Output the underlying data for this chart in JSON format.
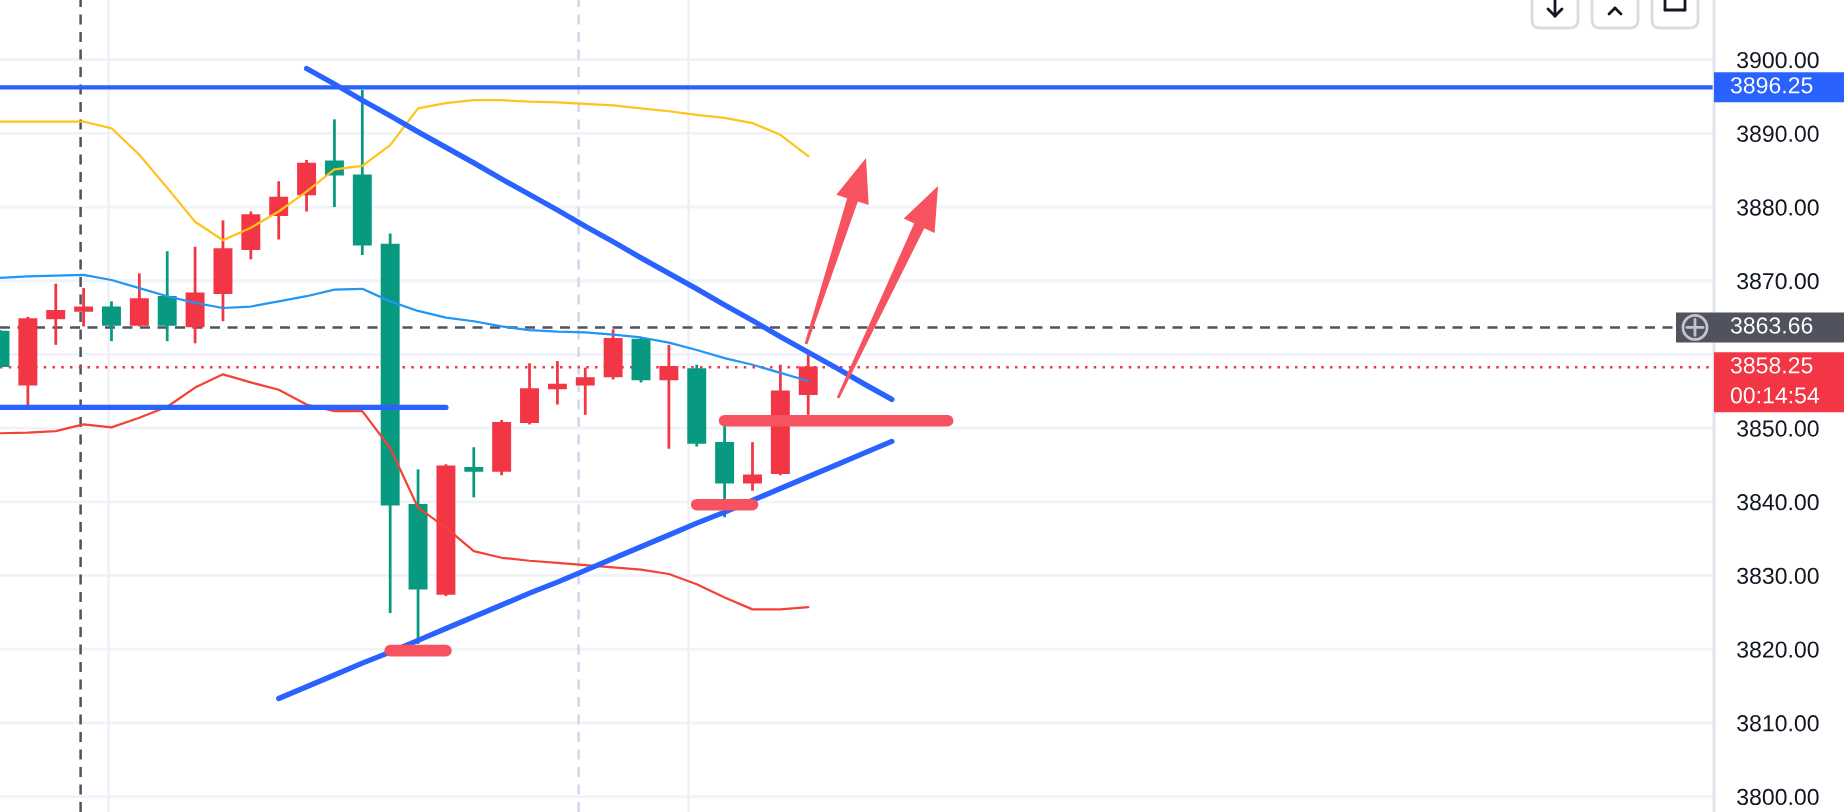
{
  "chart_data": {
    "type": "candlestick",
    "categories": [
      null,
      null,
      null,
      null,
      null,
      null,
      null,
      null,
      null,
      null,
      null,
      null,
      null,
      null,
      null,
      null,
      null,
      null,
      null,
      null,
      null,
      null,
      null,
      null,
      null,
      null,
      null,
      null,
      null,
      null,
      null,
      null,
      null,
      null,
      null,
      null,
      null,
      null,
      null,
      null,
      null,
      null,
      null,
      null,
      null,
      null,
      null,
      null,
      null,
      null,
      null,
      null,
      null,
      null,
      null,
      null,
      null,
      null,
      null,
      null,
      null,
      null
    ],
    "ohlc": [
      [
        3863.1,
        3863.3,
        3858.2,
        3858.4
      ],
      [
        3855.9,
        3865.1,
        3852.8,
        3864.8
      ],
      [
        3864.9,
        3869.6,
        3861.3,
        3865.9
      ],
      [
        3865.9,
        3869.0,
        3863.8,
        3866.4
      ],
      [
        3866.4,
        3867.2,
        3861.8,
        3864.0
      ],
      [
        3864.0,
        3871.0,
        3863.8,
        3867.5
      ],
      [
        3867.8,
        3874.0,
        3861.8,
        3864.0
      ],
      [
        3863.8,
        3874.6,
        3861.5,
        3868.3
      ],
      [
        3868.3,
        3878.2,
        3864.5,
        3874.3
      ],
      [
        3874.3,
        3879.4,
        3872.9,
        3878.9
      ],
      [
        3878.9,
        3883.5,
        3875.6,
        3881.3
      ],
      [
        3881.7,
        3886.4,
        3879.4,
        3885.9
      ],
      [
        3886.2,
        3891.9,
        3880.0,
        3884.4
      ],
      [
        3884.3,
        3895.9,
        3873.5,
        3874.9
      ],
      [
        3874.9,
        3876.4,
        3824.9,
        3839.6
      ],
      [
        3839.6,
        3844.4,
        3820.7,
        3828.2
      ],
      [
        3827.5,
        3845.1,
        3827.2,
        3844.8
      ],
      [
        3844.6,
        3847.4,
        3840.6,
        3844.2
      ],
      [
        3844.2,
        3851.1,
        3843.6,
        3850.7
      ],
      [
        3850.8,
        3858.8,
        3850.5,
        3855.3
      ],
      [
        3855.4,
        3859.1,
        3853.2,
        3855.9
      ],
      [
        3855.9,
        3858.2,
        3851.8,
        3856.8
      ],
      [
        3857.0,
        3863.4,
        3856.6,
        3862.1
      ],
      [
        3862.0,
        3862.3,
        3856.2,
        3856.6
      ],
      [
        3856.6,
        3861.3,
        3847.2,
        3858.3
      ],
      [
        3858.0,
        3858.6,
        3847.5,
        3848.0
      ],
      [
        3848.0,
        3850.5,
        3837.9,
        3842.6
      ],
      [
        3842.6,
        3848.1,
        3841.5,
        3843.6
      ],
      [
        3843.9,
        3858.6,
        3843.6,
        3855.0
      ],
      [
        3854.6,
        3860.4,
        3851.8,
        3858.25
      ],
      null,
      null,
      null,
      null,
      null,
      null,
      null,
      null,
      null,
      null,
      null,
      null,
      null,
      null,
      null,
      null,
      null,
      null,
      null,
      null,
      null,
      null,
      null,
      null,
      null,
      null,
      null,
      null,
      null,
      null,
      null,
      null
    ],
    "colors": [
      "#089981",
      "#f23645",
      "#f23645",
      "#f23645",
      "#089981",
      "#f23645",
      "#089981",
      "#f23645",
      "#f23645",
      "#f23645",
      "#f23645",
      "#f23645",
      "#089981",
      "#089981",
      "#089981",
      "#089981",
      "#f23645",
      "#089981",
      "#f23645",
      "#f23645",
      "#f23645",
      "#f23645",
      "#f23645",
      "#089981",
      "#f23645",
      "#089981",
      "#089981",
      "#f23645",
      "#f23645",
      "#f23645",
      null,
      null,
      null,
      null,
      null,
      null,
      null,
      null,
      null,
      null,
      null,
      null,
      null,
      null,
      null,
      null,
      null,
      null,
      null,
      null,
      null,
      null,
      null,
      null,
      null,
      null,
      null,
      null,
      null,
      null,
      null,
      null
    ],
    "series": [
      {
        "type": "line",
        "color": "#ffc31a",
        "values": [
          3891.6,
          3891.6,
          3891.6,
          3891.6,
          3890.7,
          3887.1,
          3882.6,
          3878.0,
          3875.5,
          3877.2,
          3879.4,
          3882.1,
          3885.1,
          3885.6,
          3888.4,
          3893.4,
          3894.1,
          3894.5,
          3894.5,
          3894.3,
          3894.2,
          3894.0,
          3893.8,
          3893.4,
          3893.0,
          3892.5,
          3892.1,
          3891.4,
          3889.8,
          3886.9,
          null,
          null,
          null,
          null,
          null,
          null,
          null,
          null,
          null,
          null,
          null,
          null,
          null,
          null,
          null,
          null,
          null,
          null,
          null,
          null,
          null,
          null,
          null,
          null,
          null,
          null,
          null,
          null,
          null,
          null,
          null,
          null
        ]
      },
      {
        "type": "line",
        "color": "#2196f3",
        "values": [
          3870.4,
          3870.6,
          3870.7,
          3870.8,
          3870.1,
          3869.0,
          3867.9,
          3867.0,
          3866.3,
          3866.5,
          3867.2,
          3867.9,
          3868.8,
          3868.9,
          3867.2,
          3865.9,
          3865.0,
          3864.5,
          3863.8,
          3863.3,
          3863.1,
          3863.0,
          3862.7,
          3862.3,
          3861.6,
          3860.6,
          3859.5,
          3858.6,
          3857.5,
          3856.4,
          null,
          null,
          null,
          null,
          null,
          null,
          null,
          null,
          null,
          null,
          null,
          null,
          null,
          null,
          null,
          null,
          null,
          null,
          null,
          null,
          null,
          null,
          null,
          null,
          null,
          null,
          null,
          null,
          null,
          null,
          null,
          null
        ]
      },
      {
        "type": "line",
        "color": "#f44336",
        "values": [
          3849.3,
          3849.4,
          3849.6,
          3850.5,
          3850.1,
          3851.4,
          3852.9,
          3855.5,
          3857.3,
          3856.2,
          3855.2,
          3853.2,
          3852.3,
          3852.3,
          3847.3,
          3839.2,
          3836.5,
          3833.3,
          3832.4,
          3832.0,
          3831.7,
          3831.4,
          3831.1,
          3830.8,
          3830.2,
          3828.8,
          3827.0,
          3825.4,
          3825.4,
          3825.7,
          null,
          null,
          null,
          null,
          null,
          null,
          null,
          null,
          null,
          null,
          null,
          null,
          null,
          null,
          null,
          null,
          null,
          null,
          null,
          null,
          null,
          null,
          null,
          null,
          null,
          null,
          null,
          null,
          null,
          null,
          null,
          null
        ]
      },
      {
        "type": "line",
        "color": "#2962ff",
        "values": [
          null,
          null,
          null,
          null,
          null,
          null,
          null,
          null,
          null,
          null,
          null,
          3898.8,
          3896.7,
          3894.5,
          3892.4,
          3890.2,
          3888.1,
          3886.0,
          3883.8,
          3881.7,
          3879.6,
          3877.4,
          3875.3,
          3873.1,
          3871.0,
          3868.9,
          3866.7,
          3864.6,
          3862.4,
          3860.3,
          3858.2,
          3856.0,
          3853.9,
          null,
          null,
          null,
          null,
          null,
          null,
          null,
          null,
          null,
          null,
          null,
          null,
          null,
          null,
          null,
          null,
          null,
          null,
          null,
          null,
          null,
          null,
          null,
          null,
          null,
          null,
          null,
          null,
          null
        ]
      },
      {
        "type": "line",
        "color": "#2962ff",
        "values": [
          null,
          null,
          null,
          null,
          null,
          null,
          null,
          null,
          null,
          null,
          3813.3,
          3814.9,
          3816.5,
          3818.1,
          3819.6,
          3821.2,
          3822.8,
          3824.4,
          3826.0,
          3827.6,
          3829.1,
          3830.7,
          3832.3,
          3833.9,
          3835.5,
          3837.1,
          3838.6,
          3840.2,
          3841.8,
          3843.4,
          3845.0,
          3846.6,
          3848.2,
          null,
          null,
          null,
          null,
          null,
          null,
          null,
          null,
          null,
          null,
          null,
          null,
          null,
          null,
          null,
          null,
          null,
          null,
          null,
          null,
          null,
          null,
          null,
          null,
          null,
          null,
          null,
          null,
          null
        ]
      },
      {
        "type": "line",
        "color": "#2962ff",
        "values": [
          3852.8,
          3852.8,
          3852.8,
          3852.8,
          3852.8,
          3852.8,
          3852.8,
          3852.8,
          3852.8,
          3852.8,
          3852.8,
          3852.8,
          3852.8,
          3852.8,
          3852.8,
          3852.8,
          3852.8,
          null,
          null,
          null,
          null,
          null,
          null,
          null,
          null,
          null,
          null,
          null,
          null,
          null,
          null,
          null,
          null,
          null,
          null,
          null,
          null,
          null,
          null,
          null,
          null,
          null,
          null,
          null,
          null,
          null,
          null,
          null,
          null,
          null,
          null,
          null,
          null,
          null,
          null,
          null,
          null,
          null,
          null,
          null,
          null,
          null
        ]
      },
      {
        "type": "line",
        "color": "#f7525f",
        "values": [
          null,
          null,
          null,
          null,
          null,
          null,
          null,
          null,
          null,
          null,
          null,
          null,
          null,
          null,
          3819.8,
          3819.8,
          3819.8,
          null,
          null,
          null,
          null,
          null,
          null,
          null,
          null,
          null,
          null,
          null,
          null,
          null,
          null,
          null,
          null,
          null,
          null,
          null,
          null,
          null,
          null,
          null,
          null,
          null,
          null,
          null,
          null,
          null,
          null,
          null,
          null,
          null,
          null,
          null,
          null,
          null,
          null,
          null,
          null,
          null,
          null,
          null,
          null,
          null
        ]
      },
      {
        "type": "line",
        "color": "#f7525f",
        "values": [
          null,
          null,
          null,
          null,
          null,
          null,
          null,
          null,
          null,
          null,
          null,
          null,
          null,
          null,
          null,
          null,
          null,
          null,
          null,
          null,
          null,
          null,
          null,
          null,
          null,
          3839.6,
          3839.6,
          3839.6,
          null,
          null,
          null,
          null,
          null,
          null,
          null,
          null,
          null,
          null,
          null,
          null,
          null,
          null,
          null,
          null,
          null,
          null,
          null,
          null,
          null,
          null,
          null,
          null,
          null,
          null,
          null,
          null,
          null,
          null,
          null,
          null,
          null,
          null
        ]
      },
      {
        "type": "line",
        "color": "#f7525f",
        "values": [
          null,
          null,
          null,
          null,
          null,
          null,
          null,
          null,
          null,
          null,
          null,
          null,
          null,
          null,
          null,
          null,
          null,
          null,
          null,
          null,
          null,
          null,
          null,
          null,
          null,
          null,
          3851.0,
          3851.0,
          3851.0,
          3851.0,
          3851.0,
          3851.0,
          3851.0,
          3851.0,
          3851.0,
          null,
          null,
          null,
          null,
          null,
          null,
          null,
          null,
          null,
          null,
          null,
          null,
          null,
          null,
          null,
          null,
          null,
          null,
          null,
          null,
          null,
          null,
          null,
          null,
          null,
          null,
          null
        ]
      }
    ],
    "ylim": [
      3797.9,
      3908.1
    ],
    "yticks": [
      {
        "value": 3800,
        "label": "3800.00"
      },
      {
        "value": 3810,
        "label": "3810.00"
      },
      {
        "value": 3820,
        "label": "3820.00"
      },
      {
        "value": 3830,
        "label": "3830.00"
      },
      {
        "value": 3840,
        "label": "3840.00"
      },
      {
        "value": 3850,
        "label": "3850.00"
      },
      {
        "value": 3860,
        "label": null
      },
      {
        "value": 3870,
        "label": "3870.00"
      },
      {
        "value": 3880,
        "label": "3880.00"
      },
      {
        "value": 3890,
        "label": "3890.00"
      },
      {
        "value": 3900,
        "label": "3900.00"
      }
    ],
    "ref_lines": [
      {
        "axis": "y",
        "value": 3896.25,
        "label": "3896.25",
        "color": "#2962ff",
        "line_style": "solid"
      },
      {
        "axis": "y",
        "value": 3863.66,
        "label": "3863.66",
        "color": "#50535e",
        "line_style": "dashed"
      },
      {
        "axis": "y",
        "value": 3858.25,
        "label": "3858.25\n00:14:54",
        "color": "#f23645",
        "line_style": "dotted"
      }
    ],
    "grid": "y",
    "tick_labels": "y"
  }
}
